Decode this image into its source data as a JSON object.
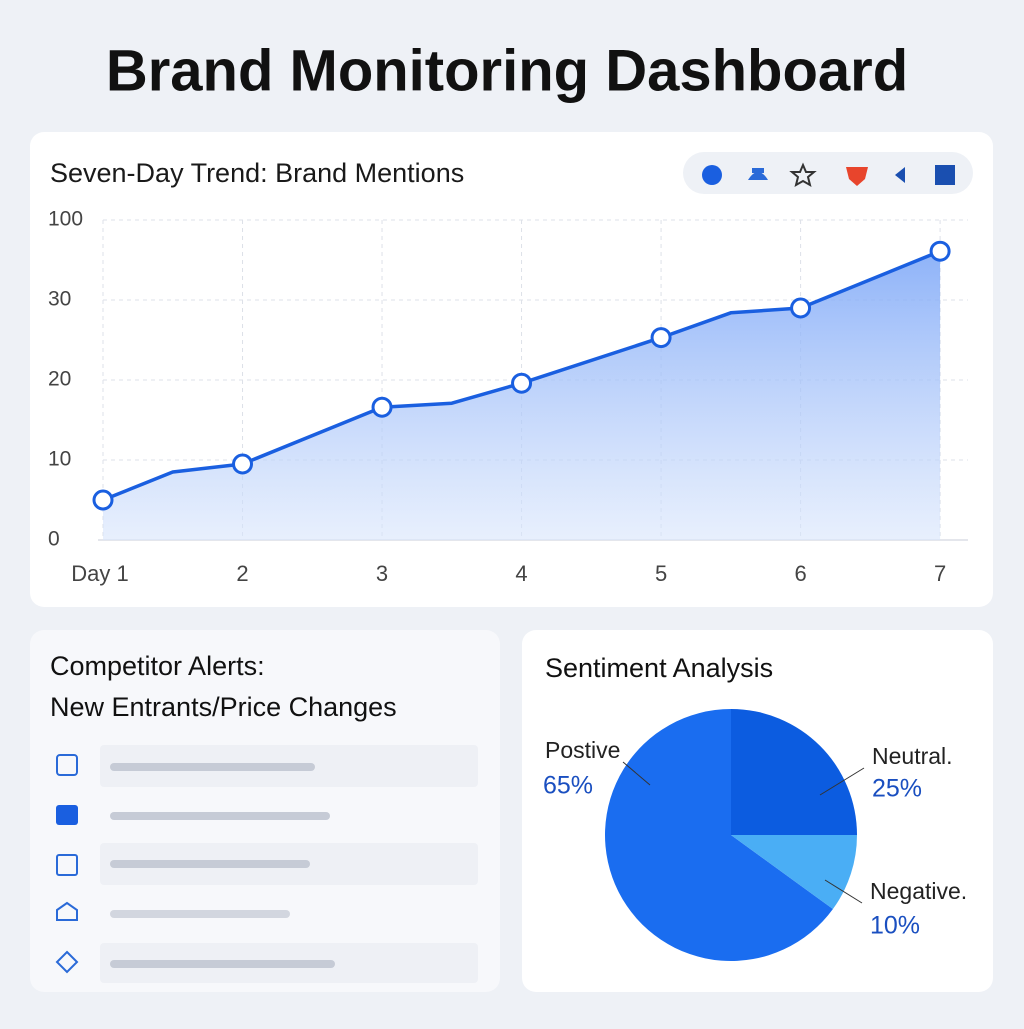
{
  "header": {
    "title": "Brand Monitoring Dashboard"
  },
  "chart_data": [
    {
      "type": "line",
      "title": "Seven-Day Trend: Brand Mentions",
      "x": [
        1,
        1.5,
        2,
        3,
        3.5,
        4,
        5,
        5.5,
        6,
        7
      ],
      "series": [
        {
          "name": "Brand Mentions",
          "color": "#1a5fe0",
          "values": [
            5,
            8.5,
            9.5,
            16.6,
            17.1,
            19.6,
            25.3,
            28.4,
            29,
            36.1
          ]
        }
      ],
      "xlim": [
        1,
        7.2
      ],
      "xticks": [
        {
          "value": 1,
          "label": "Day 1"
        },
        2,
        3,
        4,
        5,
        6,
        7
      ],
      "ylim": [
        0,
        40
      ],
      "yticks": [
        0,
        10,
        20,
        30
      ],
      "y_top_label": "100",
      "grid": true
    },
    {
      "type": "pie",
      "title": "Sentiment Analysis",
      "categories": [
        "Postive",
        "Neutral.",
        "Negative."
      ],
      "values": [
        65,
        25,
        10
      ],
      "value_labels": [
        "65%",
        "25%",
        "10%"
      ],
      "colors": [
        "#1a6df0",
        "#0c5ce0",
        "#4aaef5"
      ]
    }
  ],
  "alerts": {
    "title_lines": [
      "Competitor Alerts:",
      "New Entrants/Price Changes"
    ]
  }
}
